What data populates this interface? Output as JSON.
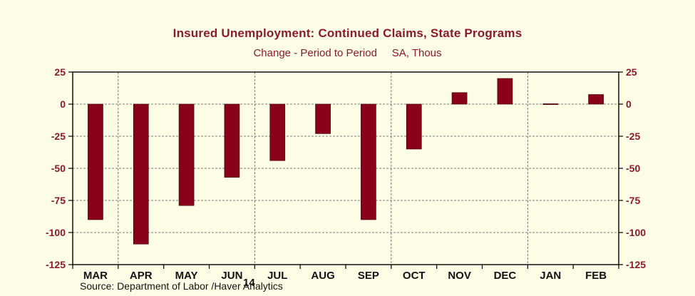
{
  "chart_data": {
    "type": "bar",
    "title": "Insured Unemployment: Continued Claims, State Programs",
    "subtitle": "Change - Period to Period     SA, Thous",
    "categories": [
      "MAR",
      "APR",
      "MAY",
      "JUN",
      "JUL",
      "AUG",
      "SEP",
      "OCT",
      "NOV",
      "DEC",
      "JAN",
      "FEB"
    ],
    "year_label": "14",
    "series": [
      {
        "values": [
          -90,
          -109,
          -79,
          -57,
          -44,
          -23,
          -90,
          -35,
          9,
          20,
          0.3,
          7.5
        ]
      }
    ],
    "ylim": [
      -125,
      25
    ],
    "yticks": [
      25,
      0,
      -25,
      -50,
      -75,
      -100,
      -125
    ],
    "ytick_labels": [
      "25",
      "0",
      "-25",
      "-50",
      "-75",
      "-100",
      "-125"
    ],
    "xlabel": "",
    "ylabel": "",
    "grid": true,
    "bar_color": "#8b0019",
    "source": "Source:  Department of Labor /Haver Analytics"
  }
}
